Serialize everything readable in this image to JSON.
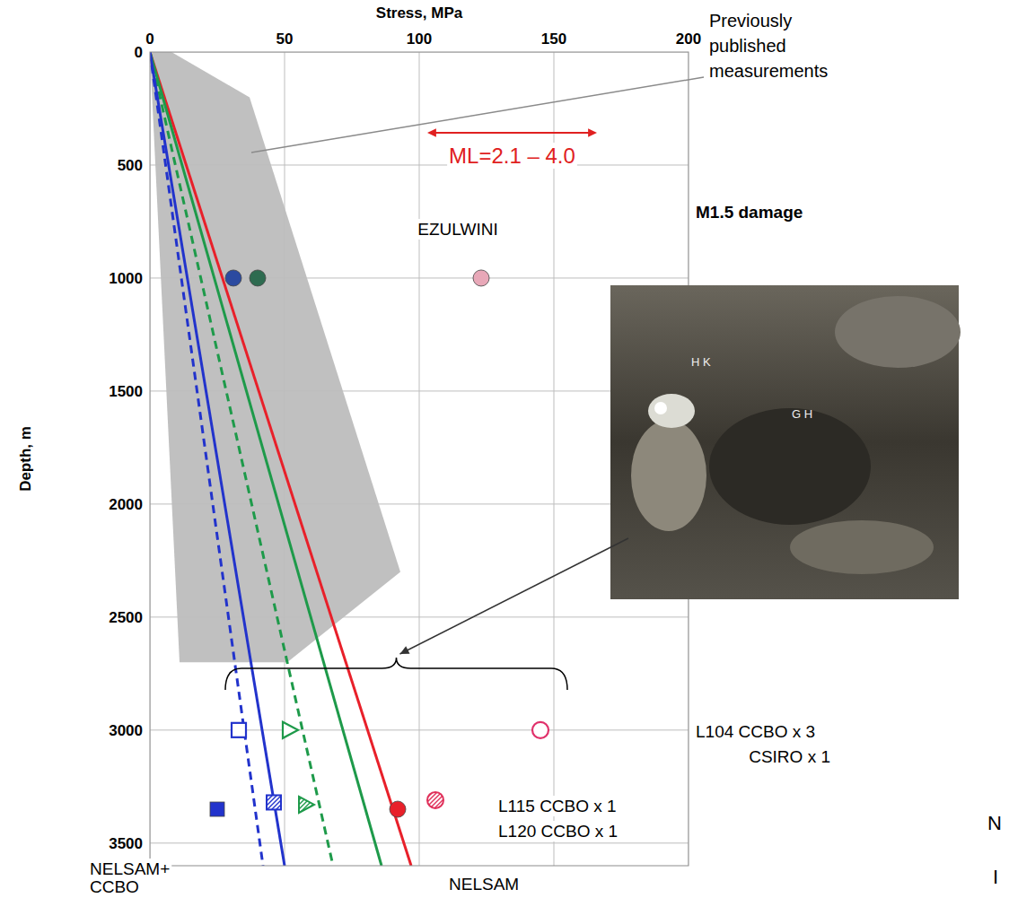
{
  "chart_data": {
    "type": "scatter",
    "xlabel": "Stress, MPa",
    "ylabel": "Depth, m",
    "xlim": [
      0,
      200
    ],
    "xticks": [
      0,
      50,
      100,
      150,
      200
    ],
    "ylim": [
      0,
      3600
    ],
    "yticks": [
      0,
      500,
      1000,
      1500,
      2000,
      2500,
      3000,
      3500
    ],
    "grid": true,
    "shaded_region": {
      "color": "#b5b5b5",
      "stress": [
        0,
        8,
        37,
        93,
        51,
        11
      ],
      "depth": [
        0,
        0,
        200,
        2300,
        2700,
        2700
      ]
    },
    "series": [
      {
        "type": "line",
        "color": "#e8202a",
        "line_style": "solid",
        "x": [
          0,
          97
        ],
        "y": [
          0,
          3600
        ]
      },
      {
        "type": "line",
        "color": "#1e9a4a",
        "line_style": "solid",
        "x": [
          0,
          86
        ],
        "y": [
          0,
          3600
        ]
      },
      {
        "type": "line",
        "color": "#1e9a4a",
        "line_style": "dashed",
        "x": [
          0,
          68
        ],
        "y": [
          0,
          3600
        ]
      },
      {
        "type": "line",
        "color": "#2233cc",
        "line_style": "solid",
        "x": [
          0,
          50
        ],
        "y": [
          0,
          3600
        ]
      },
      {
        "type": "line",
        "color": "#2233cc",
        "line_style": "dashed",
        "x": [
          0,
          42
        ],
        "y": [
          0,
          3600
        ]
      },
      {
        "type": "scatter",
        "color": "#2b4aa0",
        "marker": "circle",
        "x": [
          31
        ],
        "y": [
          1000
        ]
      },
      {
        "type": "scatter",
        "color": "#2e6b50",
        "marker": "circle",
        "x": [
          40
        ],
        "y": [
          1000
        ]
      },
      {
        "type": "scatter",
        "color": "#e8a8b8",
        "marker": "circle",
        "x": [
          123
        ],
        "y": [
          1000
        ]
      },
      {
        "type": "scatter",
        "color": "#2233cc",
        "marker": "open-square",
        "x": [
          33
        ],
        "y": [
          3000
        ]
      },
      {
        "type": "scatter",
        "color": "#1e9a4a",
        "marker": "open-triangle",
        "x": [
          52
        ],
        "y": [
          3000
        ]
      },
      {
        "type": "scatter",
        "color": "#e0306a",
        "marker": "open-circle",
        "x": [
          145
        ],
        "y": [
          3000
        ]
      },
      {
        "type": "scatter",
        "color": "#2233cc",
        "marker": "square",
        "x": [
          25
        ],
        "y": [
          3350
        ]
      },
      {
        "type": "scatter",
        "color": "#2233cc",
        "marker": "hatched-square",
        "x": [
          46
        ],
        "y": [
          3320
        ]
      },
      {
        "type": "scatter",
        "color": "#1e9a4a",
        "marker": "hatched-triangle",
        "x": [
          58
        ],
        "y": [
          3330
        ]
      },
      {
        "type": "scatter",
        "color": "#e8202a",
        "marker": "circle",
        "x": [
          92
        ],
        "y": [
          3350
        ]
      },
      {
        "type": "scatter",
        "color": "#e0305a",
        "marker": "hatched-circle",
        "x": [
          106
        ],
        "y": [
          3310
        ]
      }
    ],
    "ml_annotation": {
      "text": "ML=2.1 – 4.0",
      "color": "#e02020",
      "stress_range": [
        103,
        166
      ]
    },
    "annotations": [
      [
        "Previously",
        "published",
        "measurements"
      ],
      [
        "M1.5 damage"
      ],
      [
        "EZULWINI"
      ],
      [
        "L104 CCBO x 3"
      ],
      [
        "CSIRO x 1"
      ],
      [
        "L115 CCBO x 1"
      ],
      [
        "L120 CCBO x 1"
      ],
      [
        "NELSAM+",
        "CCBO"
      ],
      [
        "NELSAM"
      ],
      [
        "N"
      ],
      [
        "I"
      ]
    ],
    "photo_labels": [
      "H K",
      "G H"
    ]
  }
}
